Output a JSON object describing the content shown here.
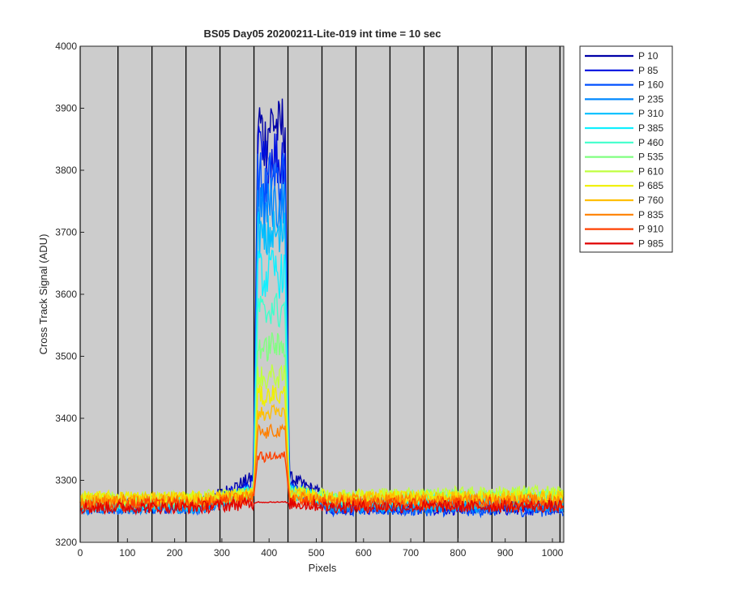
{
  "chart_data": {
    "type": "line",
    "title": "BS05 Day05 20200211-Lite-019 int time = 10 sec",
    "xlabel": "Pixels",
    "ylabel": "Cross Track Signal (ADU)",
    "xlim": [
      0,
      1024
    ],
    "ylim": [
      3200,
      4000
    ],
    "xticks": [
      0,
      100,
      200,
      300,
      400,
      500,
      600,
      700,
      800,
      900,
      1000
    ],
    "yticks": [
      3200,
      3300,
      3400,
      3500,
      3600,
      3700,
      3800,
      3900,
      4000
    ],
    "vertical_lines_x": [
      0,
      80,
      152,
      224,
      296,
      368,
      440,
      512,
      584,
      656,
      728,
      800,
      872,
      944,
      1016
    ],
    "background_color": "#cccccc",
    "legend_position": "outside-top-right",
    "peak_range_x": [
      375,
      435
    ],
    "series": [
      {
        "name": "P 10",
        "color": "#0000a8",
        "baseline": 3262,
        "noise": 11,
        "peak": 3880,
        "shoulder": 3310
      },
      {
        "name": "P 85",
        "color": "#0010e0",
        "baseline": 3258,
        "noise": 11,
        "peak": 3830,
        "shoulder": 3300
      },
      {
        "name": "P 160",
        "color": "#0050ff",
        "baseline": 3256,
        "noise": 11,
        "peak": 3790,
        "shoulder": 3290
      },
      {
        "name": "P 235",
        "color": "#0088ff",
        "baseline": 3256,
        "noise": 11,
        "peak": 3750,
        "shoulder": 3285
      },
      {
        "name": "P 310",
        "color": "#00bfff",
        "baseline": 3258,
        "noise": 11,
        "peak": 3700,
        "shoulder": 3280
      },
      {
        "name": "P 385",
        "color": "#10f0ff",
        "baseline": 3260,
        "noise": 11,
        "peak": 3640,
        "shoulder": 3278
      },
      {
        "name": "P 460",
        "color": "#40ffcc",
        "baseline": 3262,
        "noise": 11,
        "peak": 3580,
        "shoulder": 3276
      },
      {
        "name": "P 535",
        "color": "#80ff80",
        "baseline": 3266,
        "noise": 11,
        "peak": 3520,
        "shoulder": 3276
      },
      {
        "name": "P 610",
        "color": "#c0ff40",
        "baseline": 3270,
        "noise": 11,
        "peak": 3470,
        "shoulder": 3276
      },
      {
        "name": "P 685",
        "color": "#f0f000",
        "baseline": 3272,
        "noise": 11,
        "peak": 3440,
        "shoulder": 3278
      },
      {
        "name": "P 760",
        "color": "#ffbf00",
        "baseline": 3270,
        "noise": 11,
        "peak": 3410,
        "shoulder": 3276
      },
      {
        "name": "P 835",
        "color": "#ff8000",
        "baseline": 3265,
        "noise": 11,
        "peak": 3380,
        "shoulder": 3272
      },
      {
        "name": "P 910",
        "color": "#ff4000",
        "baseline": 3260,
        "noise": 11,
        "peak": 3340,
        "shoulder": 3268
      },
      {
        "name": "P 985",
        "color": "#e00000",
        "baseline": 3256,
        "noise": 10,
        "peak": 3265,
        "shoulder": 3262
      }
    ]
  }
}
